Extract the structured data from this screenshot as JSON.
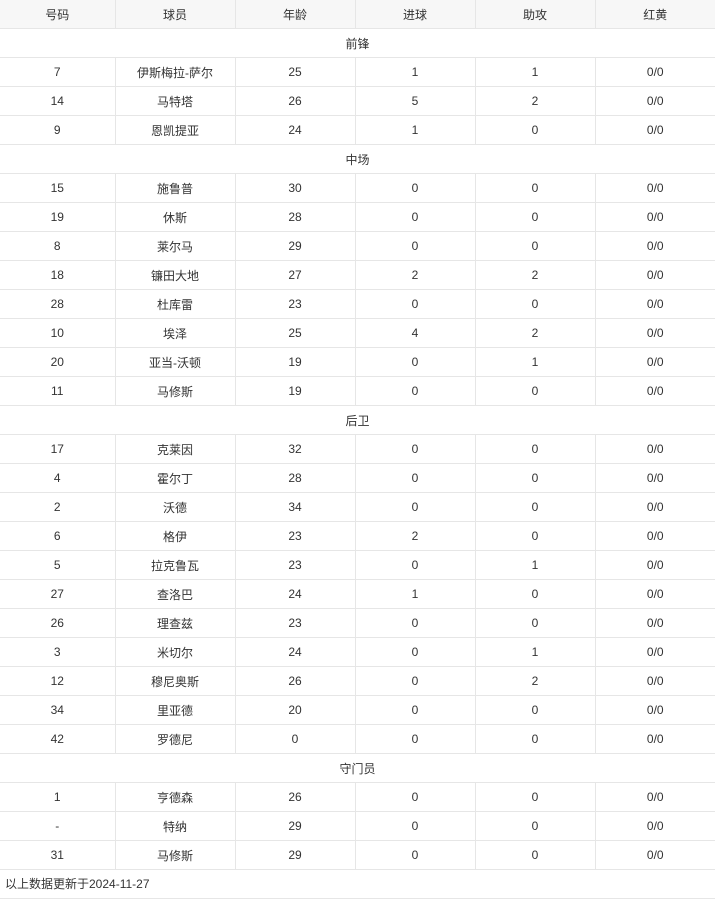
{
  "columns": [
    "号码",
    "球员",
    "年龄",
    "进球",
    "助攻",
    "红黄"
  ],
  "sections": [
    {
      "title": "前锋",
      "rows": [
        [
          "7",
          "伊斯梅拉-萨尔",
          "25",
          "1",
          "1",
          "0/0"
        ],
        [
          "14",
          "马特塔",
          "26",
          "5",
          "2",
          "0/0"
        ],
        [
          "9",
          "恩凯提亚",
          "24",
          "1",
          "0",
          "0/0"
        ]
      ]
    },
    {
      "title": "中场",
      "rows": [
        [
          "15",
          "施鲁普",
          "30",
          "0",
          "0",
          "0/0"
        ],
        [
          "19",
          "休斯",
          "28",
          "0",
          "0",
          "0/0"
        ],
        [
          "8",
          "莱尔马",
          "29",
          "0",
          "0",
          "0/0"
        ],
        [
          "18",
          "镰田大地",
          "27",
          "2",
          "2",
          "0/0"
        ],
        [
          "28",
          "杜库雷",
          "23",
          "0",
          "0",
          "0/0"
        ],
        [
          "10",
          "埃泽",
          "25",
          "4",
          "2",
          "0/0"
        ],
        [
          "20",
          "亚当-沃顿",
          "19",
          "0",
          "1",
          "0/0"
        ],
        [
          "11",
          "马修斯",
          "19",
          "0",
          "0",
          "0/0"
        ]
      ]
    },
    {
      "title": "后卫",
      "rows": [
        [
          "17",
          "克莱因",
          "32",
          "0",
          "0",
          "0/0"
        ],
        [
          "4",
          "霍尔丁",
          "28",
          "0",
          "0",
          "0/0"
        ],
        [
          "2",
          "沃德",
          "34",
          "0",
          "0",
          "0/0"
        ],
        [
          "6",
          "格伊",
          "23",
          "2",
          "0",
          "0/0"
        ],
        [
          "5",
          "拉克鲁瓦",
          "23",
          "0",
          "1",
          "0/0"
        ],
        [
          "27",
          "查洛巴",
          "24",
          "1",
          "0",
          "0/0"
        ],
        [
          "26",
          "理查兹",
          "23",
          "0",
          "0",
          "0/0"
        ],
        [
          "3",
          "米切尔",
          "24",
          "0",
          "1",
          "0/0"
        ],
        [
          "12",
          "穆尼奥斯",
          "26",
          "0",
          "2",
          "0/0"
        ],
        [
          "34",
          "里亚德",
          "20",
          "0",
          "0",
          "0/0"
        ],
        [
          "42",
          "罗德尼",
          "0",
          "0",
          "0",
          "0/0"
        ]
      ]
    },
    {
      "title": "守门员",
      "rows": [
        [
          "1",
          "亨德森",
          "26",
          "0",
          "0",
          "0/0"
        ],
        [
          "-",
          "特纳",
          "29",
          "0",
          "0",
          "0/0"
        ],
        [
          "31",
          "马修斯",
          "29",
          "0",
          "0",
          "0/0"
        ]
      ]
    }
  ],
  "footer": "以上数据更新于2024-11-27"
}
